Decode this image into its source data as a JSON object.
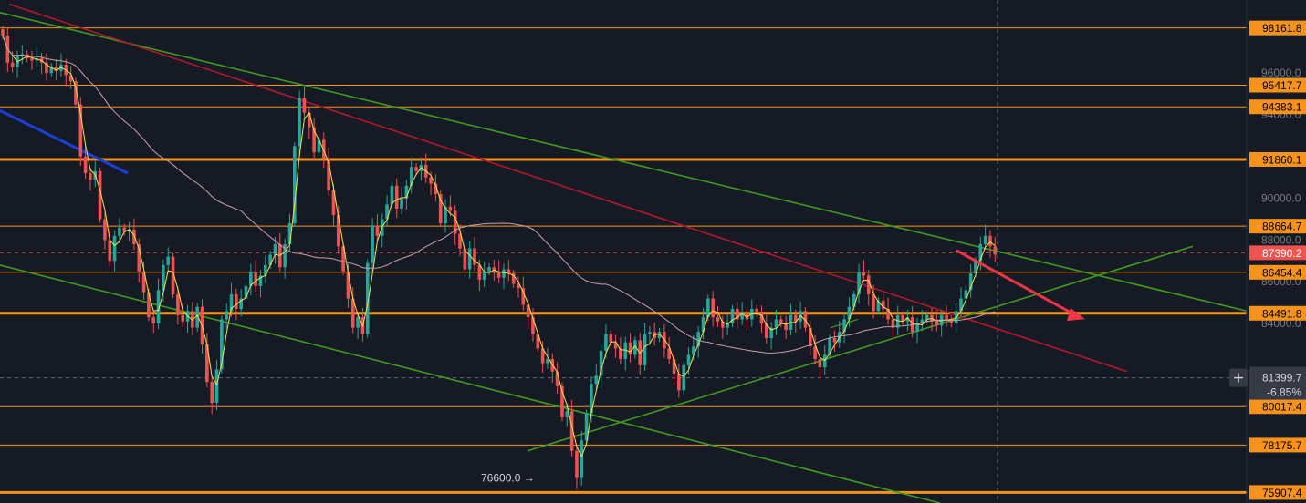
{
  "chart_data": {
    "type": "candlestick",
    "title": "",
    "xlabel": "",
    "ylabel": "",
    "ylim": [
      75400,
      99500
    ],
    "grid": false,
    "y_ticks": [
      {
        "value": 96000,
        "label": "96000.0"
      },
      {
        "value": 94000,
        "label": "94000.0"
      },
      {
        "value": 90000,
        "label": "90000.0"
      },
      {
        "value": 88000,
        "label": "88000.0"
      },
      {
        "value": 86000,
        "label": "86000.0"
      },
      {
        "value": 84000,
        "label": "84000.0"
      }
    ],
    "levels": [
      {
        "value": 98161.8,
        "label": "98161.8",
        "weight": "thin"
      },
      {
        "value": 95417.7,
        "label": "95417.7",
        "weight": "thin"
      },
      {
        "value": 94383.1,
        "label": "94383.1",
        "weight": "thin"
      },
      {
        "value": 91860.1,
        "label": "91860.1",
        "weight": "thick"
      },
      {
        "value": 88664.7,
        "label": "88664.7",
        "weight": "thin"
      },
      {
        "value": 86454.4,
        "label": "86454.4",
        "weight": "thin"
      },
      {
        "value": 84491.8,
        "label": "84491.8",
        "weight": "thick"
      },
      {
        "value": 80017.4,
        "label": "80017.4",
        "weight": "thin"
      },
      {
        "value": 78175.7,
        "label": "78175.7",
        "weight": "thin"
      },
      {
        "value": 75907.4,
        "label": "75907.4",
        "weight": "thick"
      }
    ],
    "current_price": {
      "value": 87390.2,
      "label": "87390.2"
    },
    "cursor": {
      "value": 81399.7,
      "label": "81399.7",
      "change_label": "-6.85%"
    },
    "low_marker": {
      "value": 76600.0,
      "label": "76600.0"
    },
    "colors": {
      "up": "#26a69a",
      "down": "#ef5350",
      "level": "#f7931a",
      "channel": "#3f9b1f",
      "red_trend": "#b2182b",
      "blue_trend": "#1e3fd6",
      "ma_fast": "#f2e34c",
      "ma_slow": "#c9a0a8",
      "arrow": "#f23645"
    },
    "closes": [
      97800,
      96500,
      96300,
      96800,
      96900,
      96700,
      96600,
      96700,
      96500,
      96000,
      96300,
      96100,
      96400,
      95900,
      95600,
      94500,
      92000,
      91200,
      90900,
      91300,
      89000,
      88000,
      87000,
      88200,
      88600,
      88400,
      88500,
      87800,
      86500,
      85500,
      84300,
      84000,
      85600,
      86800,
      87200,
      85400,
      84400,
      84100,
      84600,
      83800,
      84800,
      83000,
      81200,
      80200,
      81800,
      84200,
      84600,
      85400,
      84700,
      85200,
      85800,
      86500,
      85800,
      86300,
      86800,
      87300,
      87800,
      86700,
      87800,
      88800,
      92500,
      94800,
      94100,
      93400,
      92200,
      92800,
      91900,
      90400,
      89200,
      87700,
      86500,
      85200,
      83800,
      84300,
      83500,
      86900,
      88700,
      88200,
      89000,
      89700,
      90600,
      89500,
      90000,
      90600,
      91500,
      91300,
      91600,
      91000,
      90700,
      90200,
      88800,
      89600,
      89400,
      88300,
      87600,
      86600,
      87600,
      86800,
      86100,
      86500,
      86700,
      86500,
      86200,
      86600,
      86400,
      85900,
      85700,
      84900,
      84300,
      83500,
      82800,
      82100,
      82300,
      81700,
      81000,
      79500,
      79800,
      77900,
      76600,
      78400,
      79700,
      81100,
      81500,
      82700,
      83500,
      83100,
      82800,
      82300,
      83100,
      82500,
      83200,
      82000,
      83500,
      83600,
      83300,
      83600,
      82800,
      82300,
      81600,
      80800,
      82000,
      82500,
      82900,
      83600,
      84300,
      85200,
      84300,
      84100,
      83800,
      84000,
      84700,
      84200,
      84500,
      84200,
      84700,
      84500,
      84000,
      83300,
      83800,
      84200,
      84000,
      83700,
      84400,
      84100,
      84600,
      83800,
      82900,
      82300,
      81900,
      82500,
      83300,
      83100,
      83600,
      84200,
      84800,
      85400,
      86500,
      86300,
      85400,
      84600,
      85100,
      84700,
      84200,
      83800,
      84400,
      84100,
      84300,
      83600,
      84000,
      84200,
      84400,
      84100,
      83900,
      84400,
      84200,
      84000,
      84600,
      85200,
      85600,
      86400,
      87000,
      87800,
      88200,
      87700,
      87300
    ]
  }
}
